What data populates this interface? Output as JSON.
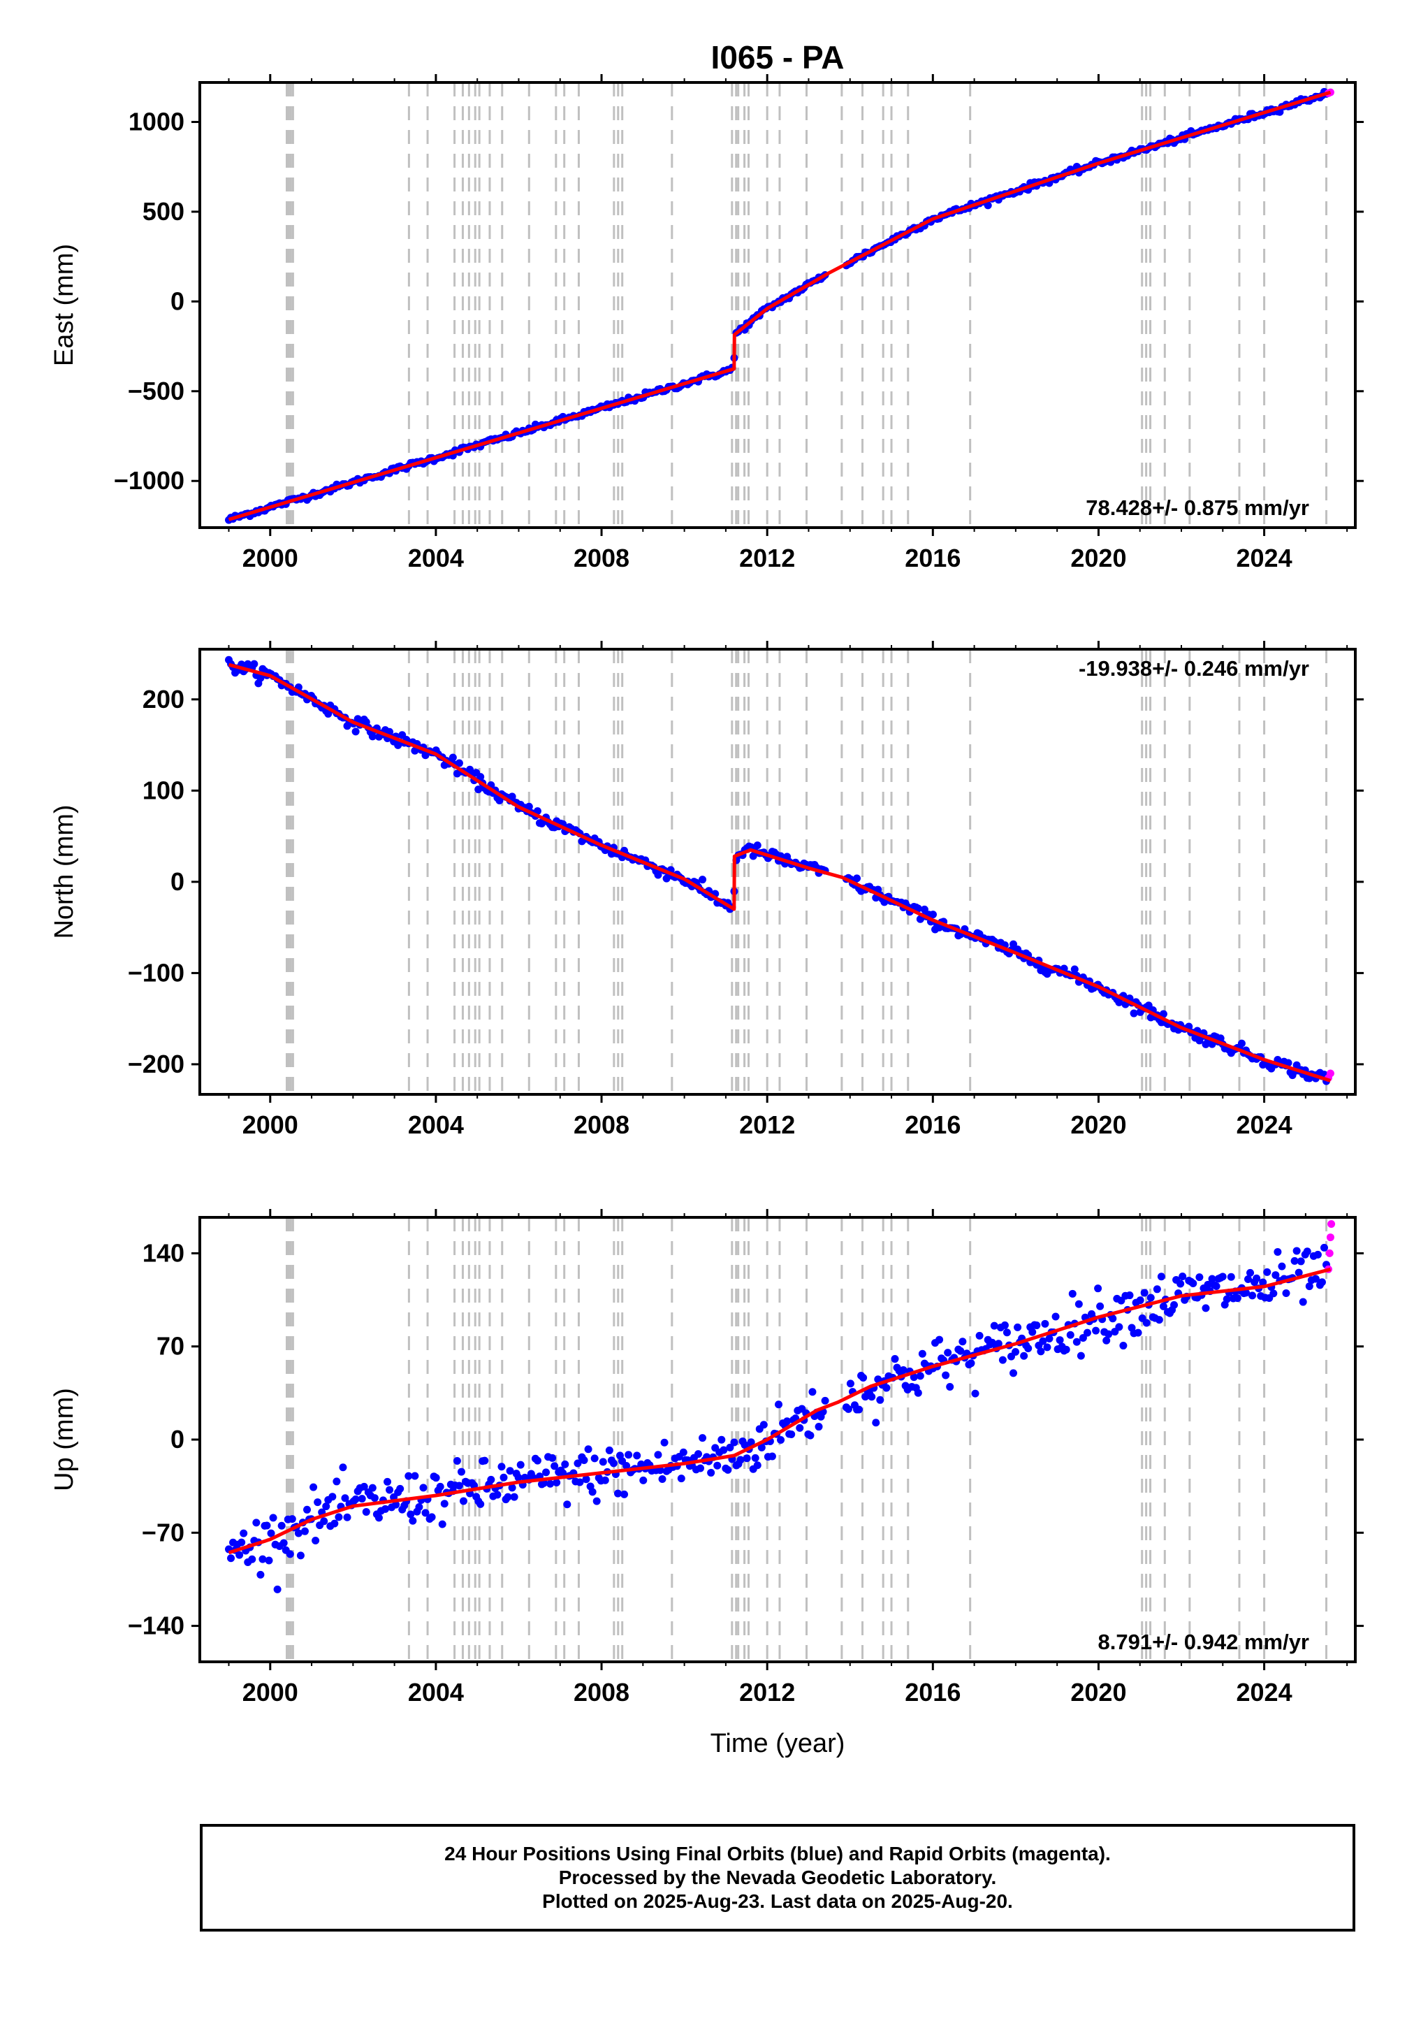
{
  "title": "I065 - PA",
  "xlabel": "Time (year)",
  "colors": {
    "final_orbits": "#0000ff",
    "rapid_orbits": "#ff00ff",
    "model": "#ff0000",
    "event_lines": "#c0c0c0",
    "axes": "#000000"
  },
  "footer": {
    "line1": "24 Hour Positions Using Final Orbits (blue) and Rapid Orbits (magenta).",
    "line2": "Processed by the Nevada Geodetic Laboratory.",
    "line3": "Plotted on 2025-Aug-23. Last data on 2025-Aug-20."
  },
  "chart_data": [
    {
      "type": "scatter",
      "name": "east",
      "ylabel": "East (mm)",
      "rate_text": "78.428+/- 0.875 mm/yr",
      "rate_position": "bottom-right",
      "xlim": [
        1998.3,
        2026.2
      ],
      "ylim": [
        -1260,
        1220
      ],
      "xticks": [
        2000,
        2004,
        2008,
        2012,
        2016,
        2020,
        2024
      ],
      "yticks": [
        -1000,
        -500,
        0,
        500,
        1000
      ],
      "yticklabels": [
        "−1000",
        "−500",
        "0",
        "500",
        "1000"
      ],
      "trend": [
        [
          1999.0,
          -1215
        ],
        [
          2011.2,
          -375
        ],
        [
          2011.21,
          -185
        ],
        [
          2012.0,
          -40
        ],
        [
          2013.5,
          160
        ],
        [
          2016.0,
          460
        ],
        [
          2020.0,
          770
        ],
        [
          2025.6,
          1165
        ]
      ],
      "scatter_sigma": 8,
      "rapid_points": [
        [
          2025.55,
          1160
        ],
        [
          2025.6,
          1165
        ]
      ]
    },
    {
      "type": "scatter",
      "name": "north",
      "ylabel": "North (mm)",
      "rate_text": "-19.938+/- 0.246 mm/yr",
      "rate_position": "top-right",
      "xlim": [
        1998.3,
        2026.2
      ],
      "ylim": [
        -233,
        255
      ],
      "xticks": [
        2000,
        2004,
        2008,
        2012,
        2016,
        2020,
        2024
      ],
      "yticks": [
        -200,
        -100,
        0,
        100,
        200
      ],
      "yticklabels": [
        "−200",
        "−100",
        "0",
        "100",
        "200"
      ],
      "trend": [
        [
          1999.0,
          238
        ],
        [
          2000.0,
          226
        ],
        [
          2002.0,
          175
        ],
        [
          2004.0,
          140
        ],
        [
          2006.0,
          82
        ],
        [
          2008.0,
          40
        ],
        [
          2010.0,
          3
        ],
        [
          2011.2,
          -30
        ],
        [
          2011.21,
          28
        ],
        [
          2011.6,
          35
        ],
        [
          2013.0,
          15
        ],
        [
          2013.8,
          5
        ],
        [
          2016.0,
          -42
        ],
        [
          2018.0,
          -78
        ],
        [
          2020.0,
          -115
        ],
        [
          2022.0,
          -160
        ],
        [
          2024.0,
          -195
        ],
        [
          2025.6,
          -218
        ]
      ],
      "scatter_sigma": 3.5,
      "rapid_points": [
        [
          2025.55,
          -215
        ],
        [
          2025.6,
          -210
        ]
      ]
    },
    {
      "type": "scatter",
      "name": "up",
      "ylabel": "Up (mm)",
      "rate_text": "8.791+/- 0.942 mm/yr",
      "rate_position": "bottom-right",
      "xlim": [
        1998.3,
        2026.2
      ],
      "ylim": [
        -167,
        167
      ],
      "xticks": [
        2000,
        2004,
        2008,
        2012,
        2016,
        2020,
        2024
      ],
      "yticks": [
        -140,
        -70,
        0,
        70,
        140
      ],
      "yticklabels": [
        "−140",
        "−70",
        "0",
        "70",
        "140"
      ],
      "trend": [
        [
          1999.0,
          -85
        ],
        [
          2000.0,
          -75
        ],
        [
          2001.0,
          -60
        ],
        [
          2002.0,
          -50
        ],
        [
          2004.0,
          -42
        ],
        [
          2006.0,
          -32
        ],
        [
          2008.0,
          -25
        ],
        [
          2010.0,
          -18
        ],
        [
          2011.2,
          -12
        ],
        [
          2012.0,
          0
        ],
        [
          2013.2,
          22
        ],
        [
          2013.7,
          28
        ],
        [
          2014.5,
          40
        ],
        [
          2016.0,
          55
        ],
        [
          2018.0,
          72
        ],
        [
          2020.0,
          92
        ],
        [
          2022.0,
          108
        ],
        [
          2024.0,
          115
        ],
        [
          2025.6,
          128
        ]
      ],
      "scatter_sigma": 10,
      "rapid_points": [
        [
          2025.55,
          128
        ],
        [
          2025.58,
          140
        ],
        [
          2025.6,
          152
        ],
        [
          2025.62,
          162
        ]
      ]
    }
  ],
  "event_lines": [
    2000.4,
    2000.45,
    2000.5,
    2000.55,
    2003.35,
    2003.8,
    2004.45,
    2004.65,
    2004.8,
    2004.95,
    2005.05,
    2005.3,
    2005.6,
    2006.25,
    2006.9,
    2007.1,
    2007.45,
    2008.3,
    2008.4,
    2008.5,
    2009.7,
    2011.15,
    2011.25,
    2011.3,
    2011.45,
    2011.55,
    2012.0,
    2012.3,
    2012.95,
    2013.8,
    2014.3,
    2014.8,
    2015.0,
    2015.4,
    2016.9,
    2021.05,
    2021.15,
    2021.25,
    2021.6,
    2022.2,
    2023.4,
    2024.0,
    2025.5
  ]
}
